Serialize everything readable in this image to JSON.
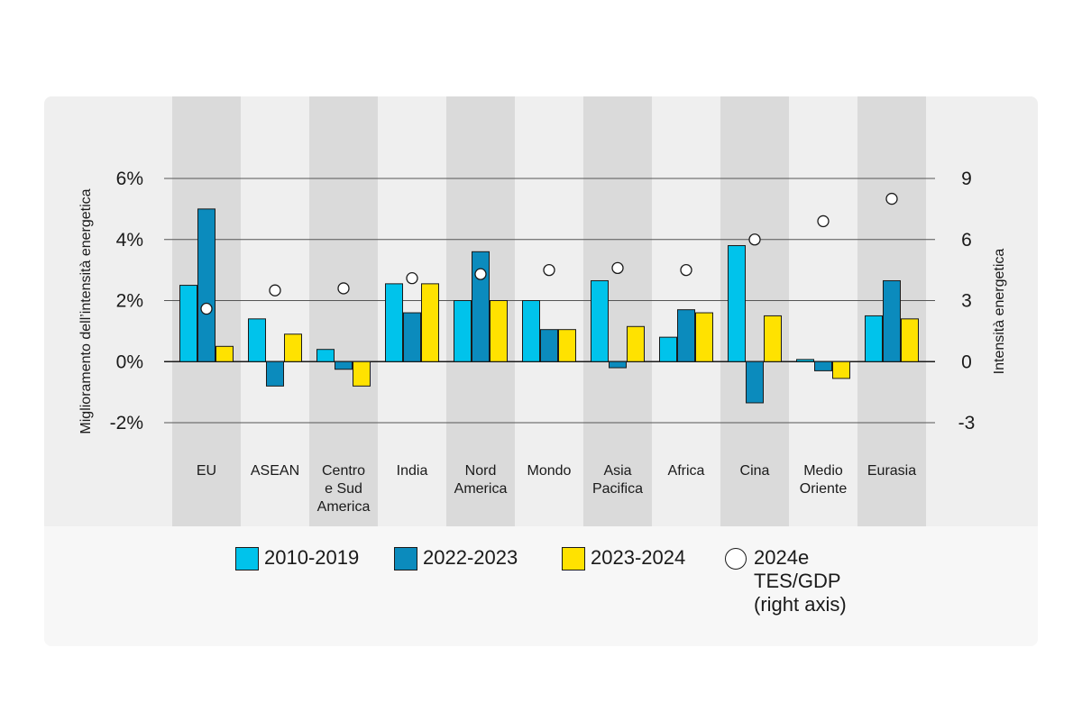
{
  "colors": {
    "series_2010_2019": "#00c3eb",
    "series_2022_2023": "#0b8bbd",
    "series_2023_2024": "#ffe200",
    "band_dark": "#dadada",
    "panel": "#efefef",
    "gridline": "#555555",
    "text": "#1a1a1a"
  },
  "legend": {
    "s1": "2010-2019",
    "s2": "2022-2023",
    "s3": "2023-2024",
    "s4": "2024e\nTES/GDP\n(right axis)"
  },
  "chart_data": {
    "type": "bar",
    "ylabel": "Miglioramento dell’intensità energetica",
    "ylabel_right": "Intensità energetica",
    "ylim": [
      -2,
      6
    ],
    "ylim_right": [
      -3,
      9
    ],
    "yticks": [
      "6%",
      "4%",
      "2%",
      "0%",
      "-2%"
    ],
    "yticks_right": [
      "9",
      "6",
      "3",
      "0",
      "-3"
    ],
    "categories": [
      "EU",
      "ASEAN",
      "Centro\ne Sud\nAmerica",
      "India",
      "Nord\nAmerica",
      "Mondo",
      "Asia\nPacifica",
      "Africa",
      "Cina",
      "Medio\nOriente",
      "Eurasia"
    ],
    "series": [
      {
        "name": "2010-2019",
        "values": [
          2.5,
          1.4,
          0.4,
          2.55,
          2.0,
          2.0,
          2.65,
          0.8,
          3.8,
          0.07,
          1.5
        ]
      },
      {
        "name": "2022-2023",
        "values": [
          5.0,
          -0.8,
          -0.25,
          1.6,
          3.6,
          1.05,
          -0.2,
          1.7,
          -1.35,
          -0.3,
          2.65
        ]
      },
      {
        "name": "2023-2024",
        "values": [
          0.5,
          0.9,
          -0.8,
          2.55,
          2.0,
          1.05,
          1.15,
          1.6,
          1.5,
          -0.55,
          1.4
        ]
      }
    ],
    "markers": {
      "name": "2024e TES/GDP (right axis)",
      "axis": "right",
      "values": [
        2.6,
        3.5,
        3.6,
        4.1,
        4.3,
        4.5,
        4.6,
        4.5,
        6.0,
        6.9,
        8.0
      ]
    }
  }
}
